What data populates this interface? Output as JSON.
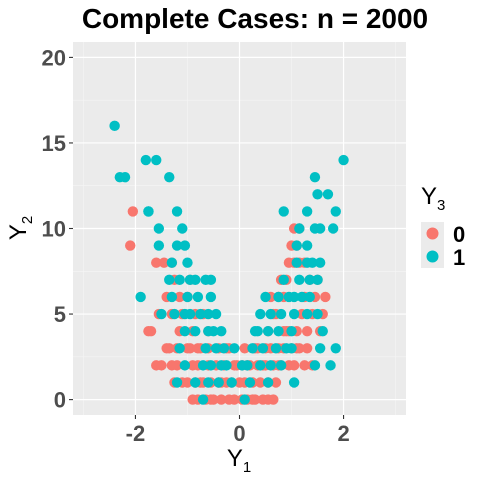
{
  "chart_data": {
    "type": "scatter",
    "title": "Complete Cases: n = 2000",
    "xlabel": {
      "main": "Y",
      "sub": "1"
    },
    "ylabel": {
      "main": "Y",
      "sub": "2"
    },
    "xlim": [
      -3.2,
      3.2
    ],
    "ylim": [
      -0.9,
      20.9
    ],
    "x_ticks": [
      -2,
      0,
      2
    ],
    "x_tick_labels": [
      "-2",
      "0",
      "2"
    ],
    "y_ticks": [
      0,
      5,
      10,
      15,
      20
    ],
    "y_tick_labels": [
      "0",
      "5",
      "10",
      "15",
      "20"
    ],
    "grid": true,
    "legend": {
      "title_main": "Y",
      "title_sub": "3",
      "placement": "right",
      "entries": [
        {
          "label": "0",
          "color": "#f8766d"
        },
        {
          "label": "1",
          "color": "#00bfc4"
        }
      ]
    },
    "series": [
      {
        "name": "0",
        "color": "#f8766d",
        "points": [
          [
            -2.05,
            11
          ],
          [
            -2.1,
            9
          ],
          [
            -1.6,
            8
          ],
          [
            -1.45,
            8
          ],
          [
            -1.3,
            8
          ],
          [
            -1.25,
            7
          ],
          [
            -1.15,
            6
          ],
          [
            -1.1,
            5
          ],
          [
            -1.4,
            6
          ],
          [
            -1.55,
            5
          ],
          [
            -1.75,
            4
          ],
          [
            -1.7,
            4
          ],
          [
            -1.6,
            2
          ],
          [
            -1.5,
            2
          ],
          [
            -1.35,
            3
          ],
          [
            -1.2,
            2
          ],
          [
            -1.1,
            1
          ],
          [
            -1.0,
            1
          ],
          [
            -0.95,
            3
          ],
          [
            -0.9,
            2
          ],
          [
            -0.85,
            1
          ],
          [
            -0.8,
            2
          ],
          [
            -0.75,
            3
          ],
          [
            -0.7,
            1
          ],
          [
            -0.65,
            0
          ],
          [
            -0.6,
            2
          ],
          [
            -0.55,
            1
          ],
          [
            -0.5,
            0
          ],
          [
            -0.45,
            2
          ],
          [
            -0.4,
            1
          ],
          [
            -0.35,
            0
          ],
          [
            -0.3,
            2
          ],
          [
            -0.25,
            1
          ],
          [
            -0.2,
            0
          ],
          [
            -0.15,
            1
          ],
          [
            -0.1,
            0
          ],
          [
            -0.05,
            2
          ],
          [
            0.0,
            1
          ],
          [
            0.05,
            0
          ],
          [
            0.1,
            1
          ],
          [
            0.15,
            0
          ],
          [
            0.2,
            2
          ],
          [
            0.25,
            1
          ],
          [
            0.3,
            0
          ],
          [
            0.35,
            2
          ],
          [
            0.4,
            1
          ],
          [
            0.45,
            0
          ],
          [
            0.5,
            2
          ],
          [
            0.55,
            1
          ],
          [
            0.6,
            3
          ],
          [
            0.65,
            2
          ],
          [
            0.7,
            1
          ],
          [
            0.75,
            3
          ],
          [
            0.8,
            2
          ],
          [
            0.85,
            3
          ],
          [
            0.9,
            4
          ],
          [
            0.95,
            2
          ],
          [
            1.0,
            3
          ],
          [
            1.05,
            2
          ],
          [
            1.1,
            4
          ],
          [
            1.15,
            3
          ],
          [
            1.2,
            5
          ],
          [
            1.25,
            2
          ],
          [
            1.3,
            3
          ],
          [
            -0.8,
            3
          ],
          [
            -0.6,
            3
          ],
          [
            -0.4,
            3
          ],
          [
            -0.2,
            3
          ],
          [
            0.1,
            3
          ],
          [
            0.3,
            3
          ],
          [
            0.5,
            3
          ],
          [
            -1.0,
            3
          ],
          [
            -1.2,
            3
          ],
          [
            1.4,
            2
          ],
          [
            -0.9,
            4
          ],
          [
            -0.6,
            4
          ],
          [
            0.55,
            4
          ],
          [
            0.7,
            5
          ],
          [
            0.65,
            5
          ],
          [
            0.6,
            6
          ],
          [
            0.75,
            6
          ],
          [
            0.8,
            7
          ],
          [
            0.9,
            7
          ],
          [
            0.95,
            8
          ],
          [
            1.05,
            8
          ],
          [
            1.0,
            9
          ],
          [
            1.1,
            9
          ],
          [
            1.15,
            10
          ],
          [
            1.05,
            10
          ],
          [
            1.15,
            8
          ],
          [
            1.25,
            8
          ],
          [
            1.35,
            7
          ],
          [
            1.5,
            7
          ],
          [
            1.45,
            6
          ],
          [
            1.4,
            5
          ],
          [
            1.55,
            4
          ],
          [
            1.3,
            4
          ],
          [
            1.65,
            6
          ],
          [
            1.6,
            5
          ],
          [
            1.25,
            6
          ],
          [
            0.85,
            6
          ],
          [
            -0.7,
            5
          ],
          [
            -1.0,
            6
          ],
          [
            -0.95,
            7
          ],
          [
            -0.85,
            5
          ],
          [
            -1.3,
            5
          ],
          [
            -1.15,
            4
          ],
          [
            -1.4,
            3
          ],
          [
            -1.25,
            1
          ],
          [
            -1.3,
            2
          ],
          [
            -0.9,
            0
          ],
          [
            -0.8,
            0
          ],
          [
            -0.75,
            1
          ],
          [
            -0.55,
            0
          ],
          [
            -0.35,
            1
          ],
          [
            0.25,
            0
          ],
          [
            0.45,
            2
          ],
          [
            0.65,
            0
          ],
          [
            0.55,
            0
          ],
          [
            0.15,
            2
          ],
          [
            0.05,
            2
          ],
          [
            -0.1,
            2
          ],
          [
            -0.25,
            3
          ],
          [
            0.35,
            3
          ],
          [
            0.75,
            2
          ],
          [
            1.1,
            3
          ],
          [
            0.95,
            4
          ],
          [
            0.85,
            4
          ]
        ]
      },
      {
        "name": "1",
        "color": "#00bfc4",
        "points": [
          [
            -2.4,
            16
          ],
          [
            -2.3,
            13
          ],
          [
            -2.2,
            13
          ],
          [
            -1.8,
            14
          ],
          [
            -1.6,
            14
          ],
          [
            -1.35,
            13
          ],
          [
            -1.75,
            11
          ],
          [
            -1.75,
            11
          ],
          [
            -1.2,
            11
          ],
          [
            -1.55,
            10
          ],
          [
            -1.1,
            10
          ],
          [
            -1.55,
            9
          ],
          [
            -1.2,
            9
          ],
          [
            -1.05,
            9
          ],
          [
            -1.3,
            8
          ],
          [
            -1.0,
            8
          ],
          [
            -1.35,
            7
          ],
          [
            -1.15,
            7
          ],
          [
            -0.95,
            7
          ],
          [
            -0.85,
            7
          ],
          [
            -0.65,
            7
          ],
          [
            -0.55,
            7
          ],
          [
            -1.3,
            6
          ],
          [
            -1.0,
            6
          ],
          [
            -0.8,
            6
          ],
          [
            -0.55,
            6
          ],
          [
            -1.9,
            6
          ],
          [
            -1.5,
            5
          ],
          [
            -1.25,
            5
          ],
          [
            -1.05,
            5
          ],
          [
            -0.95,
            5
          ],
          [
            -0.75,
            5
          ],
          [
            -0.6,
            5
          ],
          [
            -0.45,
            5
          ],
          [
            -1.05,
            4
          ],
          [
            -0.85,
            4
          ],
          [
            -0.6,
            4
          ],
          [
            -0.5,
            4
          ],
          [
            -0.35,
            4
          ],
          [
            -1.15,
            3
          ],
          [
            -0.65,
            3
          ],
          [
            -0.45,
            3
          ],
          [
            -0.3,
            3
          ],
          [
            -0.1,
            3
          ],
          [
            -1.05,
            2
          ],
          [
            -0.7,
            2
          ],
          [
            -0.55,
            2
          ],
          [
            -0.85,
            1
          ],
          [
            -0.6,
            1
          ],
          [
            -0.15,
            1
          ],
          [
            0.55,
            1
          ],
          [
            1.05,
            1
          ],
          [
            0.15,
            2
          ],
          [
            0.4,
            2
          ],
          [
            0.6,
            2
          ],
          [
            0.8,
            2
          ],
          [
            0.25,
            3
          ],
          [
            0.45,
            3
          ],
          [
            0.7,
            3
          ],
          [
            0.9,
            3
          ],
          [
            0.35,
            4
          ],
          [
            0.55,
            4
          ],
          [
            0.75,
            4
          ],
          [
            1.0,
            4
          ],
          [
            0.6,
            5
          ],
          [
            0.8,
            5
          ],
          [
            1.05,
            5
          ],
          [
            1.3,
            5
          ],
          [
            1.5,
            5
          ],
          [
            0.5,
            6
          ],
          [
            0.75,
            6
          ],
          [
            1.05,
            6
          ],
          [
            1.35,
            6
          ],
          [
            0.85,
            7
          ],
          [
            1.15,
            7
          ],
          [
            1.35,
            7
          ],
          [
            1.5,
            7
          ],
          [
            1.1,
            8
          ],
          [
            1.3,
            8
          ],
          [
            1.4,
            8
          ],
          [
            1.55,
            8
          ],
          [
            1.1,
            9
          ],
          [
            1.3,
            9
          ],
          [
            1.15,
            10
          ],
          [
            1.45,
            10
          ],
          [
            1.55,
            10
          ],
          [
            1.8,
            10
          ],
          [
            0.85,
            11
          ],
          [
            1.3,
            11
          ],
          [
            1.85,
            11
          ],
          [
            1.5,
            12
          ],
          [
            1.7,
            12
          ],
          [
            1.45,
            13
          ],
          [
            2.0,
            14
          ],
          [
            1.55,
            3
          ],
          [
            1.6,
            4
          ],
          [
            1.75,
            2
          ],
          [
            1.85,
            3
          ],
          [
            1.0,
            3
          ],
          [
            0.3,
            4
          ],
          [
            0.05,
            2
          ],
          [
            -0.25,
            2
          ],
          [
            0.2,
            1
          ],
          [
            -0.4,
            1
          ],
          [
            -0.7,
            0
          ],
          [
            0.1,
            0
          ],
          [
            -1.2,
            1
          ],
          [
            1.45,
            2
          ],
          [
            0.4,
            5
          ],
          [
            -0.35,
            2
          ],
          [
            0.95,
            6
          ],
          [
            1.2,
            6
          ]
        ]
      }
    ]
  }
}
